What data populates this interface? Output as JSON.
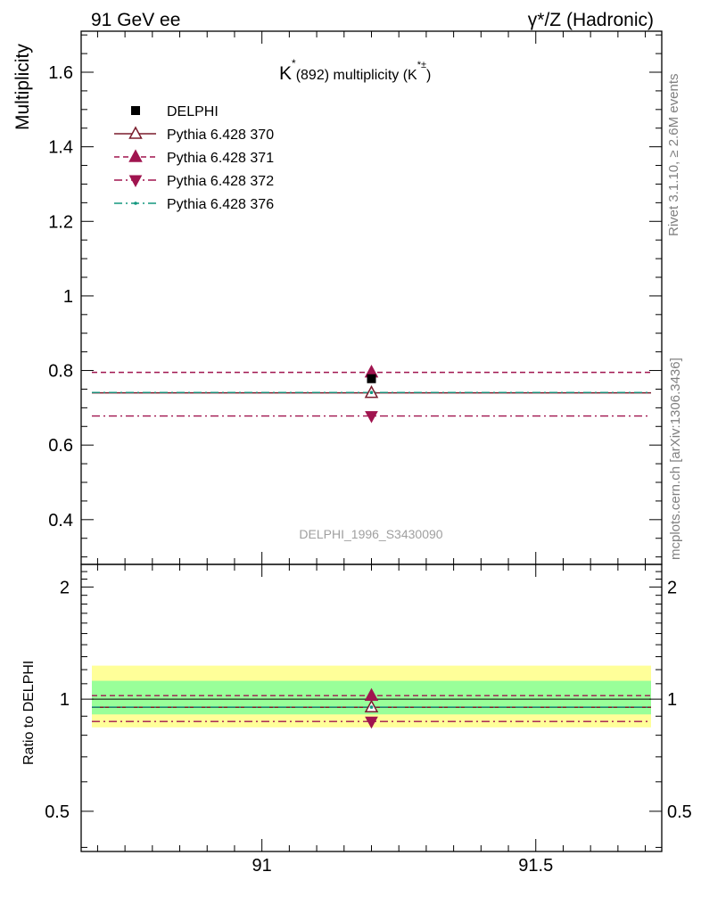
{
  "header": {
    "left_title": "91 GeV ee",
    "right_title": "γ*/Z (Hadronic)"
  },
  "side_labels": {
    "rivet": "Rivet 3.1.10, ≥ 2.6M events",
    "mcplots": "mcplots.cern.ch [arXiv:1306.3436]"
  },
  "chart_data": [
    {
      "type": "line",
      "title": "K*(892) multiplicity (K*±)",
      "title_parts": {
        "main": "K",
        "sup": "*",
        "rest": "(892) multiplicity (K",
        "sup2": "*±",
        "end": ")"
      },
      "watermark": "DELPHI_1996_S3430090",
      "ylabel": "Multiplicity",
      "xlim": [
        90.67,
        91.73
      ],
      "ylim": [
        0.28,
        1.71
      ],
      "yticks": [
        0.4,
        0.6,
        0.8,
        1,
        1.2,
        1.4,
        1.6
      ],
      "ytick_labels": [
        "0.4",
        "0.6",
        "0.8",
        "1",
        "1.2",
        "1.4",
        "1.6"
      ],
      "grid": false,
      "legend_position": "top-left",
      "series": [
        {
          "name": "DELPHI",
          "marker": "square",
          "line": "none",
          "color": "#000000",
          "x": [
            91.2
          ],
          "y": [
            0.778
          ]
        },
        {
          "name": "Pythia 6.428 370",
          "marker": "triangle-up-open",
          "line": "solid",
          "color": "#7a1c2c",
          "x": [
            91.2
          ],
          "y": [
            0.74
          ]
        },
        {
          "name": "Pythia 6.428 371",
          "marker": "triangle-up",
          "line": "dashed",
          "color": "#a0144f",
          "x": [
            91.2
          ],
          "y": [
            0.795
          ]
        },
        {
          "name": "Pythia 6.428 372",
          "marker": "triangle-down",
          "line": "dashdot",
          "color": "#a0144f",
          "x": [
            91.2
          ],
          "y": [
            0.678
          ]
        },
        {
          "name": "Pythia 6.428 376",
          "marker": "dot",
          "line": "dashdot",
          "color": "#12977f",
          "x": [
            91.2
          ],
          "y": [
            0.741
          ]
        }
      ]
    },
    {
      "type": "line",
      "ylabel": "Ratio to DELPHI",
      "xlim": [
        90.67,
        91.73
      ],
      "ylim": [
        0.39,
        2.3
      ],
      "yticks": [
        0.5,
        1,
        2
      ],
      "ytick_labels": [
        "0.5",
        "1",
        "2"
      ],
      "xticks": [
        91,
        91.5
      ],
      "xtick_labels": [
        "91",
        "91.5"
      ],
      "bands": [
        {
          "name": "total uncertainty",
          "low": 0.84,
          "high": 1.23,
          "color": "#ffff99"
        },
        {
          "name": "stat uncertainty",
          "low": 0.91,
          "high": 1.12,
          "color": "#99ff99"
        }
      ],
      "series": [
        {
          "name": "Pythia 6.428 370",
          "y": [
            0.951
          ]
        },
        {
          "name": "Pythia 6.428 371",
          "y": [
            1.022
          ]
        },
        {
          "name": "Pythia 6.428 372",
          "y": [
            0.871
          ]
        },
        {
          "name": "Pythia 6.428 376",
          "y": [
            0.952
          ]
        }
      ]
    }
  ]
}
